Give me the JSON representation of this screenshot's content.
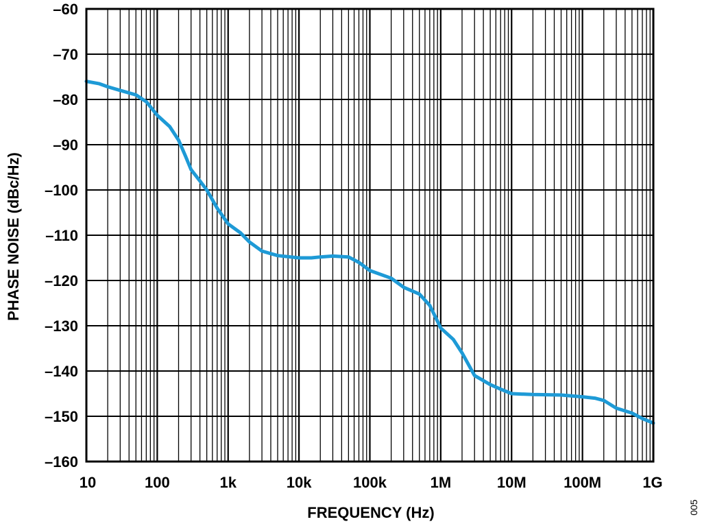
{
  "chart_data": {
    "type": "line",
    "title": "",
    "xlabel": "FREQUENCY (Hz)",
    "ylabel": "PHASE NOISE (dBc/Hz)",
    "x_scale": "log",
    "xlim": [
      10,
      1000000000
    ],
    "ylim": [
      -160,
      -60
    ],
    "grid": true,
    "x_ticks": [
      {
        "value": 10,
        "label": "10"
      },
      {
        "value": 100,
        "label": "100"
      },
      {
        "value": 1000,
        "label": "1k"
      },
      {
        "value": 10000,
        "label": "10k"
      },
      {
        "value": 100000,
        "label": "100k"
      },
      {
        "value": 1000000,
        "label": "1M"
      },
      {
        "value": 10000000,
        "label": "10M"
      },
      {
        "value": 100000000,
        "label": "100M"
      },
      {
        "value": 1000000000,
        "label": "1G"
      }
    ],
    "y_ticks": [
      {
        "value": -60,
        "label": "–60"
      },
      {
        "value": -70,
        "label": "–70"
      },
      {
        "value": -80,
        "label": "–80"
      },
      {
        "value": -90,
        "label": "–90"
      },
      {
        "value": -100,
        "label": "–100"
      },
      {
        "value": -110,
        "label": "–110"
      },
      {
        "value": -120,
        "label": "–120"
      },
      {
        "value": -130,
        "label": "–130"
      },
      {
        "value": -140,
        "label": "–140"
      },
      {
        "value": -150,
        "label": "–150"
      },
      {
        "value": -160,
        "label": "–160"
      }
    ],
    "series": [
      {
        "color": "#1e9ad6",
        "points": [
          [
            10,
            -76
          ],
          [
            15,
            -76.5
          ],
          [
            20,
            -77.2
          ],
          [
            30,
            -78
          ],
          [
            50,
            -79
          ],
          [
            70,
            -80.5
          ],
          [
            100,
            -83.5
          ],
          [
            150,
            -86
          ],
          [
            200,
            -89
          ],
          [
            250,
            -92.5
          ],
          [
            300,
            -95.5
          ],
          [
            400,
            -98
          ],
          [
            500,
            -100
          ],
          [
            700,
            -104
          ],
          [
            1000,
            -107.5
          ],
          [
            1500,
            -109.5
          ],
          [
            2000,
            -111.5
          ],
          [
            3000,
            -113.5
          ],
          [
            5000,
            -114.5
          ],
          [
            10000,
            -115
          ],
          [
            15000,
            -115
          ],
          [
            20000,
            -114.8
          ],
          [
            30000,
            -114.6
          ],
          [
            50000,
            -114.8
          ],
          [
            70000,
            -116
          ],
          [
            100000,
            -117.8
          ],
          [
            200000,
            -119.5
          ],
          [
            300000,
            -121.5
          ],
          [
            500000,
            -123
          ],
          [
            700000,
            -125.5
          ],
          [
            1000000,
            -130.5
          ],
          [
            1500000,
            -133
          ],
          [
            2000000,
            -136
          ],
          [
            3000000,
            -141
          ],
          [
            5000000,
            -143
          ],
          [
            7000000,
            -144
          ],
          [
            10000000,
            -145
          ],
          [
            20000000,
            -145.2
          ],
          [
            50000000,
            -145.3
          ],
          [
            100000000,
            -145.7
          ],
          [
            150000000,
            -146
          ],
          [
            200000000,
            -146.5
          ],
          [
            300000000,
            -148.2
          ],
          [
            500000000,
            -149.3
          ],
          [
            700000000,
            -150.5
          ],
          [
            1000000000,
            -151.5
          ]
        ]
      }
    ]
  },
  "side_code": "005"
}
